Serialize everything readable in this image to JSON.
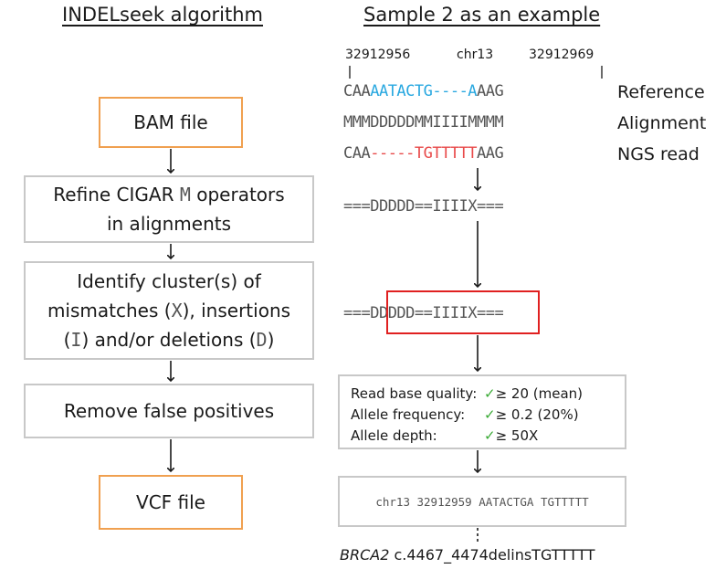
{
  "left": {
    "heading": "INDELseek algorithm",
    "boxes": {
      "bam": "BAM file",
      "refine_pre": "Refine CIGAR ",
      "refine_op": "M",
      "refine_post": " operators",
      "refine_line2": "in alignments",
      "identify_line1": "Identify cluster(s) of",
      "identify_l2a": "mismatches (",
      "identify_x": "X",
      "identify_l2b": "), insertions",
      "identify_l3a": "(",
      "identify_i": "I",
      "identify_l3b": ") and/or deletions (",
      "identify_d": "D",
      "identify_l3c": ")",
      "remove": "Remove false positives",
      "vcf": "VCF file"
    }
  },
  "right": {
    "heading": "Sample 2 as an example",
    "coords": {
      "start": "32912956",
      "chrom": "chr13",
      "end": "32912969"
    },
    "reference": {
      "a": "CAA",
      "b": "AATACTG----A",
      "c": "AAG",
      "label": "Reference"
    },
    "alignment": {
      "seq": "MMMDDDDDMMIIIIMMMM",
      "label": "Alignment"
    },
    "read": {
      "a": "CAA",
      "b": "-----TGTTTTT",
      "c": "AAG",
      "label": "NGS read"
    },
    "cigar1": "===DDDDD==IIIIX===",
    "cigar2": {
      "a": "===",
      "b": "DDDDD==IIIIX",
      "c": "==="
    },
    "filters": [
      {
        "key": "Read base quality:",
        "check": "✓",
        "value": "≥ 20 (mean)"
      },
      {
        "key": "Allele frequency:",
        "check": "✓",
        "value": "≥ 0.2 (20%)"
      },
      {
        "key": "Allele depth:",
        "check": "✓",
        "value": "≥ 50X"
      }
    ],
    "vcf_line": "chr13 32912959 AATACTGA TGTTTTT",
    "hgvs": {
      "gene": "BRCA2",
      "change": " c.4467_4474delinsTGTTTTT"
    }
  }
}
